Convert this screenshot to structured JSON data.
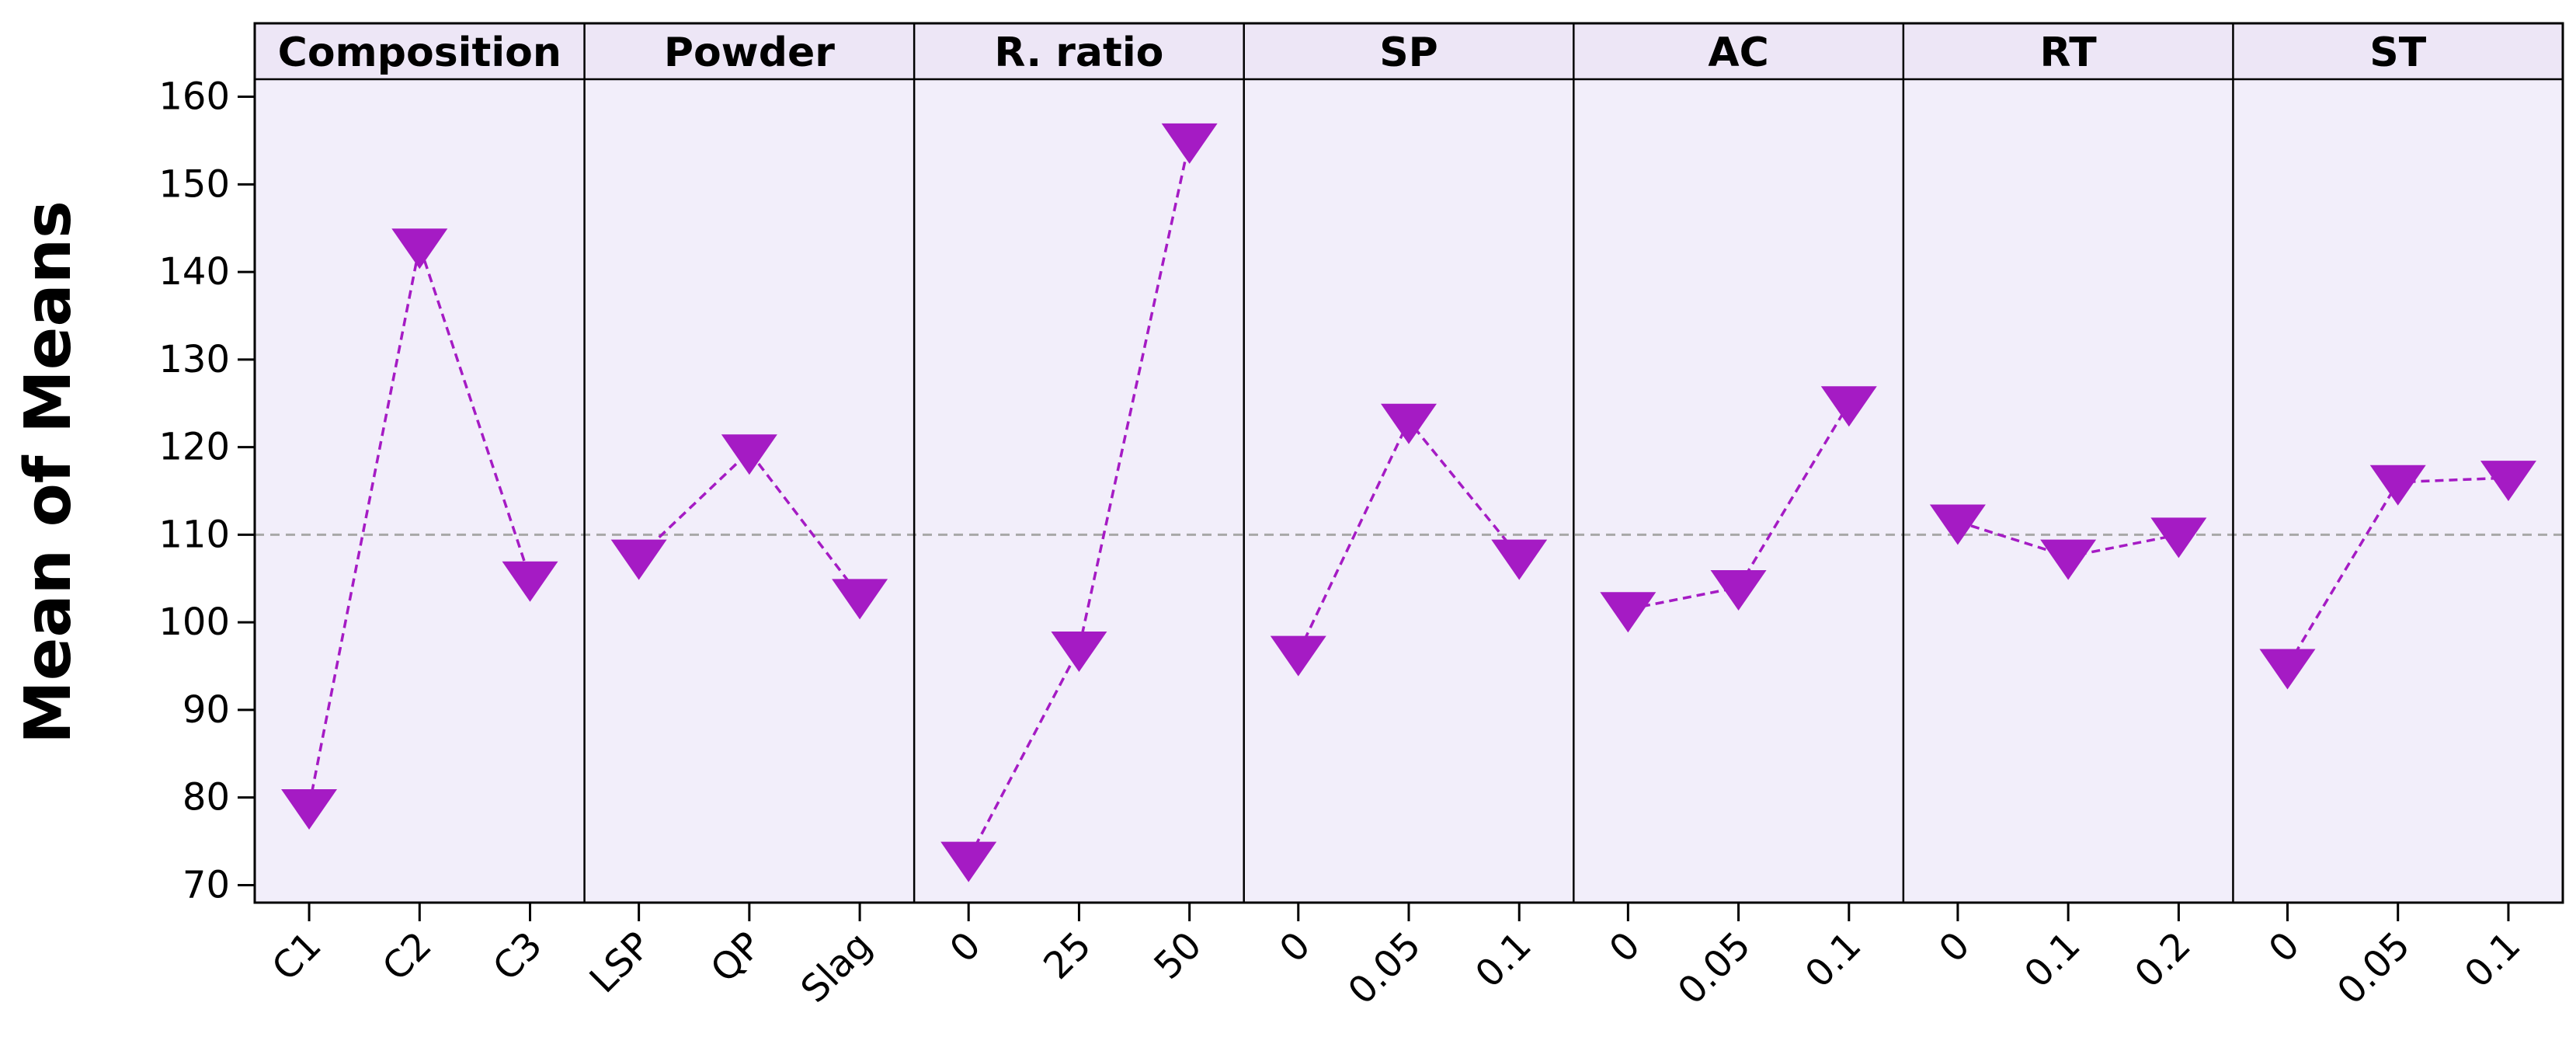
{
  "chart_data": {
    "type": "line",
    "ylabel": "Mean of Means",
    "ylim": [
      68,
      162
    ],
    "yticks": [
      70,
      80,
      90,
      100,
      110,
      120,
      130,
      140,
      150,
      160
    ],
    "reference_line": 110,
    "marker": "triangle-down",
    "colors": {
      "marker": "#a51bc4",
      "line": "#a51bc4",
      "panel_bg": "#f2eefa",
      "header_bg": "#ede6f6",
      "reference": "#a8a8a8"
    },
    "panels": [
      {
        "title": "Composition",
        "categories": [
          "C1",
          "C2",
          "C3"
        ],
        "values": [
          79,
          143,
          105
        ]
      },
      {
        "title": "Powder",
        "categories": [
          "LSP",
          "QP",
          "Slag"
        ],
        "values": [
          107.5,
          119.5,
          103
        ]
      },
      {
        "title": "R. ratio",
        "categories": [
          "0",
          "25",
          "50"
        ],
        "values": [
          73,
          97,
          155
        ]
      },
      {
        "title": "SP",
        "categories": [
          "0",
          "0.05",
          "0.1"
        ],
        "values": [
          96.5,
          123,
          107.5
        ]
      },
      {
        "title": "AC",
        "categories": [
          "0",
          "0.05",
          "0.1"
        ],
        "values": [
          101.5,
          104,
          125
        ]
      },
      {
        "title": "RT",
        "categories": [
          "0",
          "0.1",
          "0.2"
        ],
        "values": [
          111.5,
          107.5,
          110
        ]
      },
      {
        "title": "ST",
        "categories": [
          "0",
          "0.05",
          "0.1"
        ],
        "values": [
          95,
          116,
          116.5
        ]
      }
    ]
  }
}
